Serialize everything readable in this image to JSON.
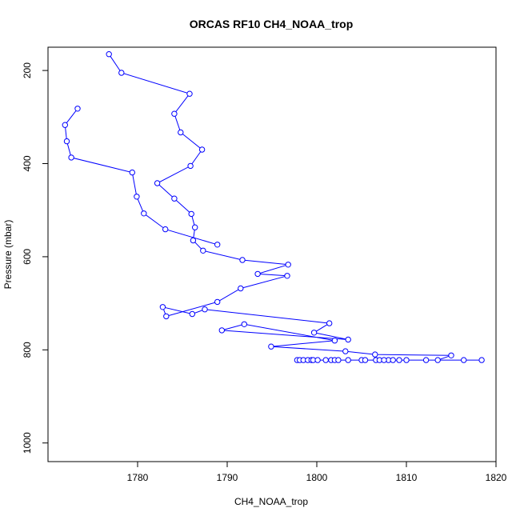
{
  "chart_data": {
    "type": "line",
    "title": "ORCAS RF10 CH4_NOAA_trop",
    "xlabel": "CH4_NOAA_trop",
    "ylabel": "Pressure (mbar)",
    "xlim": [
      1770,
      1820
    ],
    "ylim": [
      1040,
      150
    ],
    "y_reversed": true,
    "x_ticks": [
      1780,
      1790,
      1800,
      1810,
      1820
    ],
    "y_ticks": [
      200,
      400,
      600,
      800,
      1000
    ],
    "grid": false,
    "markers": "open-circle",
    "series": [
      {
        "color": "#0000ff",
        "x": [
          1776.8,
          1778.2,
          1785.8,
          1784.1,
          1784.8,
          1787.2,
          1785.9,
          1782.2,
          1784.1,
          1786.0,
          1786.4,
          1786.2,
          1787.3,
          1791.7,
          1796.8,
          1793.4,
          1796.7,
          1791.5,
          1788.9,
          1783.2,
          1782.8,
          1786.1,
          1787.5,
          1801.4,
          1799.7,
          1803.5,
          1789.4,
          1791.9,
          1802.0,
          1794.9,
          1803.2,
          1806.5,
          1815.0,
          1813.5,
          1808.0,
          1797.8,
          1798.1,
          1798.5,
          1799.0,
          1799.4,
          1799.6,
          1800.1,
          1801.0,
          1801.6,
          1802.0,
          1802.4,
          1803.5,
          1805.0,
          1805.4,
          1806.6,
          1807.0,
          1807.5,
          1808.5,
          1809.2,
          1810.0,
          1812.2,
          1816.4,
          1818.4
        ],
        "y": [
          165,
          205,
          250,
          293,
          333,
          370,
          405,
          442,
          475,
          508,
          537,
          565,
          587,
          607,
          617,
          637,
          641,
          668,
          697,
          728,
          708,
          723,
          713,
          743,
          763,
          778,
          758,
          745,
          780,
          793,
          803,
          810,
          812,
          822,
          822,
          822,
          822,
          822,
          822,
          822,
          822,
          822,
          822,
          822,
          822,
          822,
          822,
          822,
          822,
          822,
          822,
          822,
          822,
          822,
          822,
          822,
          822,
          822
        ]
      },
      {
        "color": "#0000ff",
        "x": [
          1773.3,
          1771.9,
          1772.1,
          1772.6,
          1779.4,
          1779.9,
          1780.7,
          1783.1,
          1788.9
        ],
        "y": [
          282,
          317,
          352,
          387,
          419,
          471,
          507,
          541,
          574
        ]
      }
    ]
  }
}
